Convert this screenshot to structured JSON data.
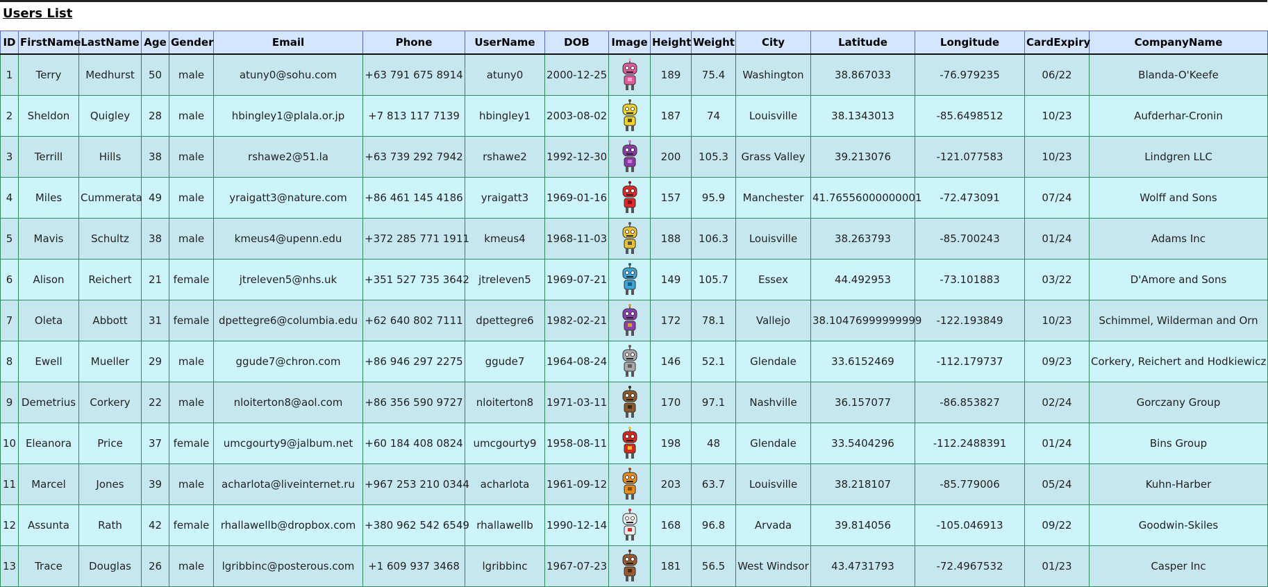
{
  "page": {
    "title": "Users List"
  },
  "table": {
    "headers": [
      "ID",
      "FirstName",
      "LastName",
      "Age",
      "Gender",
      "Email",
      "Phone",
      "UserName",
      "DOB",
      "Image",
      "Height",
      "Weight",
      "City",
      "Latitude",
      "Longitude",
      "CardExpiry",
      "CompanyName"
    ],
    "rows": [
      {
        "id": "1",
        "first": "Terry",
        "last": "Medhurst",
        "age": "50",
        "gender": "male",
        "email": "atuny0@sohu.com",
        "phone": "+63 791 675 8914",
        "username": "atuny0",
        "dob": "2000-12-25",
        "image": {
          "icon": "robot-pink-icon",
          "color": "#e25a9c",
          "accent": "#f6a7cc"
        },
        "height": "189",
        "weight": "75.4",
        "city": "Washington",
        "lat": "38.867033",
        "lng": "-76.979235",
        "card": "06/22",
        "company": "Blanda-O'Keefe"
      },
      {
        "id": "2",
        "first": "Sheldon",
        "last": "Quigley",
        "age": "28",
        "gender": "male",
        "email": "hbingley1@plala.or.jp",
        "phone": "+7 813 117 7139",
        "username": "hbingley1",
        "dob": "2003-08-02",
        "image": {
          "icon": "robot-yellow-icon",
          "color": "#f0d228",
          "accent": "#5a4a1a"
        },
        "height": "187",
        "weight": "74",
        "city": "Louisville",
        "lat": "38.1343013",
        "lng": "-85.6498512",
        "card": "10/23",
        "company": "Aufderhar-Cronin"
      },
      {
        "id": "3",
        "first": "Terrill",
        "last": "Hills",
        "age": "38",
        "gender": "male",
        "email": "rshawe2@51.la",
        "phone": "+63 739 292 7942",
        "username": "rshawe2",
        "dob": "1992-12-30",
        "image": {
          "icon": "robot-purple-icon",
          "color": "#8d3aa8",
          "accent": "#c47bd9"
        },
        "height": "200",
        "weight": "105.3",
        "city": "Grass Valley",
        "lat": "39.213076",
        "lng": "-121.077583",
        "card": "10/23",
        "company": "Lindgren LLC"
      },
      {
        "id": "4",
        "first": "Miles",
        "last": "Cummerata",
        "age": "49",
        "gender": "male",
        "email": "yraigatt3@nature.com",
        "phone": "+86 461 145 4186",
        "username": "yraigatt3",
        "dob": "1969-01-16",
        "image": {
          "icon": "robot-red-icon",
          "color": "#e02a2a",
          "accent": "#7a1010"
        },
        "height": "157",
        "weight": "95.9",
        "city": "Manchester",
        "lat": "41.76556000000001",
        "lng": "-72.473091",
        "card": "07/24",
        "company": "Wolff and Sons"
      },
      {
        "id": "5",
        "first": "Mavis",
        "last": "Schultz",
        "age": "38",
        "gender": "male",
        "email": "kmeus4@upenn.edu",
        "phone": "+372 285 771 1911",
        "username": "kmeus4",
        "dob": "1968-11-03",
        "image": {
          "icon": "robot-gold-icon",
          "color": "#e9c130",
          "accent": "#555555"
        },
        "height": "188",
        "weight": "106.3",
        "city": "Louisville",
        "lat": "38.263793",
        "lng": "-85.700243",
        "card": "01/24",
        "company": "Adams Inc"
      },
      {
        "id": "6",
        "first": "Alison",
        "last": "Reichert",
        "age": "21",
        "gender": "female",
        "email": "jtreleven5@nhs.uk",
        "phone": "+351 527 735 3642",
        "username": "jtreleven5",
        "dob": "1969-07-21",
        "image": {
          "icon": "robot-blue-icon",
          "color": "#3aa6d6",
          "accent": "#1a5c80"
        },
        "height": "149",
        "weight": "105.7",
        "city": "Essex",
        "lat": "44.492953",
        "lng": "-73.101883",
        "card": "03/22",
        "company": "D'Amore and Sons"
      },
      {
        "id": "7",
        "first": "Oleta",
        "last": "Abbott",
        "age": "31",
        "gender": "female",
        "email": "dpettegre6@columbia.edu",
        "phone": "+62 640 802 7111",
        "username": "dpettegre6",
        "dob": "1982-02-21",
        "image": {
          "icon": "robot-violet-icon",
          "color": "#8b3fae",
          "accent": "#d8a020"
        },
        "height": "172",
        "weight": "78.1",
        "city": "Vallejo",
        "lat": "38.10476999999999",
        "lng": "-122.193849",
        "card": "10/23",
        "company": "Schimmel, Wilderman and Orn"
      },
      {
        "id": "8",
        "first": "Ewell",
        "last": "Mueller",
        "age": "29",
        "gender": "male",
        "email": "ggude7@chron.com",
        "phone": "+86 946 297 2275",
        "username": "ggude7",
        "dob": "1964-08-24",
        "image": {
          "icon": "robot-gray-icon",
          "color": "#a8a8a8",
          "accent": "#5e5e5e"
        },
        "height": "146",
        "weight": "52.1",
        "city": "Glendale",
        "lat": "33.6152469",
        "lng": "-112.179737",
        "card": "09/23",
        "company": "Corkery, Reichert and Hodkiewicz"
      },
      {
        "id": "9",
        "first": "Demetrius",
        "last": "Corkery",
        "age": "22",
        "gender": "male",
        "email": "nloiterton8@aol.com",
        "phone": "+86 356 590 9727",
        "username": "nloiterton8",
        "dob": "1971-03-11",
        "image": {
          "icon": "robot-brown-icon",
          "color": "#8a5a2a",
          "accent": "#3a2a1a"
        },
        "height": "170",
        "weight": "97.1",
        "city": "Nashville",
        "lat": "36.157077",
        "lng": "-86.853827",
        "card": "02/24",
        "company": "Gorczany Group"
      },
      {
        "id": "10",
        "first": "Eleanora",
        "last": "Price",
        "age": "37",
        "gender": "female",
        "email": "umcgourty9@jalbum.net",
        "phone": "+60 184 408 0824",
        "username": "umcgourty9",
        "dob": "1958-08-11",
        "image": {
          "icon": "robot-crimson-icon",
          "color": "#d8281e",
          "accent": "#f6c020"
        },
        "height": "198",
        "weight": "48",
        "city": "Glendale",
        "lat": "33.5404296",
        "lng": "-112.2488391",
        "card": "01/24",
        "company": "Bins Group"
      },
      {
        "id": "11",
        "first": "Marcel",
        "last": "Jones",
        "age": "39",
        "gender": "male",
        "email": "acharlota@liveinternet.ru",
        "phone": "+967 253 210 0344",
        "username": "acharlota",
        "dob": "1961-09-12",
        "image": {
          "icon": "robot-orange-icon",
          "color": "#e88a1e",
          "accent": "#8a4a10"
        },
        "height": "203",
        "weight": "63.7",
        "city": "Louisville",
        "lat": "38.218107",
        "lng": "-85.779006",
        "card": "05/24",
        "company": "Kuhn-Harber"
      },
      {
        "id": "12",
        "first": "Assunta",
        "last": "Rath",
        "age": "42",
        "gender": "female",
        "email": "rhallawellb@dropbox.com",
        "phone": "+380 962 542 6549",
        "username": "rhallawellb",
        "dob": "1990-12-14",
        "image": {
          "icon": "robot-white-icon",
          "color": "#eaeaea",
          "accent": "#d02a2a"
        },
        "height": "168",
        "weight": "96.8",
        "city": "Arvada",
        "lat": "39.814056",
        "lng": "-105.046913",
        "card": "09/22",
        "company": "Goodwin-Skiles"
      },
      {
        "id": "13",
        "first": "Trace",
        "last": "Douglas",
        "age": "26",
        "gender": "male",
        "email": "lgribbinc@posterous.com",
        "phone": "+1 609 937 3468",
        "username": "lgribbinc",
        "dob": "1967-07-23",
        "image": {
          "icon": "robot-rust-icon",
          "color": "#9a5a2e",
          "accent": "#4a2a14"
        },
        "height": "181",
        "weight": "56.5",
        "city": "West Windsor",
        "lat": "43.4731793",
        "lng": "-72.4967532",
        "card": "01/23",
        "company": "Casper Inc"
      }
    ]
  }
}
